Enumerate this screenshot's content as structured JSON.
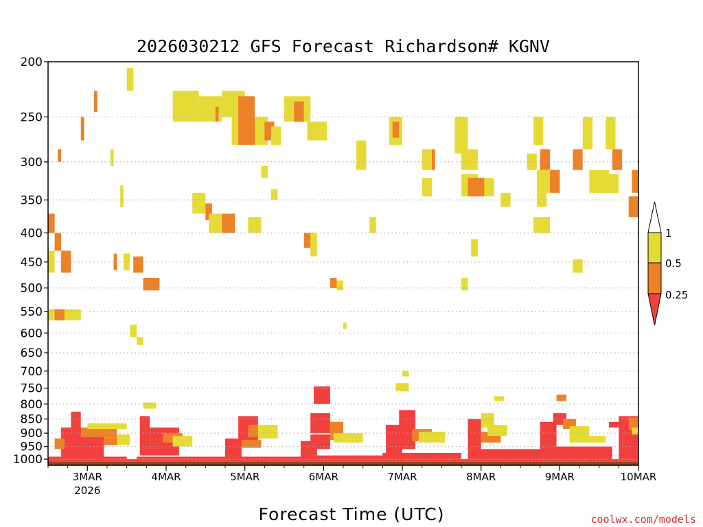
{
  "colors": {
    "red": "#f2403f",
    "orange": "#ec8128",
    "yellow": "#e6db36",
    "ground": "#8a4a1e",
    "grid": "#aaaaaa"
  },
  "chart_data": {
    "type": "heatmap",
    "title": "2026030212 GFS Forecast Richardson# KGNV",
    "xlabel": "Forecast Time (UTC)",
    "ylabel": "",
    "credit": "coolwx.com/models",
    "x_units": "hours since 2026-03-02 12Z",
    "xlim": [
      0,
      180
    ],
    "x_ticks": [
      {
        "h": 12,
        "label": "3MAR",
        "sub": "2026"
      },
      {
        "h": 36,
        "label": "4MAR",
        "sub": ""
      },
      {
        "h": 60,
        "label": "5MAR",
        "sub": ""
      },
      {
        "h": 84,
        "label": "6MAR",
        "sub": ""
      },
      {
        "h": 108,
        "label": "7MAR",
        "sub": ""
      },
      {
        "h": 132,
        "label": "8MAR",
        "sub": ""
      },
      {
        "h": 156,
        "label": "9MAR",
        "sub": ""
      },
      {
        "h": 180,
        "label": "10MAR",
        "sub": ""
      }
    ],
    "y_units": "hPa",
    "ylim": [
      1025,
      200
    ],
    "y_ticks": [
      200,
      250,
      300,
      350,
      400,
      450,
      500,
      550,
      600,
      650,
      700,
      750,
      800,
      850,
      900,
      950,
      1000
    ],
    "legend": {
      "labels": [
        "1",
        "0.5",
        "0.25"
      ],
      "classes": [
        {
          "name": "< 0.25",
          "color": "red"
        },
        {
          "name": "0.25 - 0.5",
          "color": "orange"
        },
        {
          "name": "0.5 - 1",
          "color": "yellow"
        },
        {
          "name": "> 1",
          "color": "white"
        }
      ]
    },
    "cells": [
      {
        "h0": 0.0,
        "h1": 180.0,
        "p0": 1010,
        "p1": 1025,
        "c": "ground"
      },
      {
        "h0": 0.0,
        "h1": 180.0,
        "p0": 1000,
        "p1": 1010,
        "c": "red"
      },
      {
        "h0": 7.0,
        "h1": 10.0,
        "p0": 825,
        "p1": 990,
        "c": "red"
      },
      {
        "h0": 4.0,
        "h1": 17.0,
        "p0": 880,
        "p1": 990,
        "c": "red"
      },
      {
        "h0": 2.0,
        "h1": 5.0,
        "p0": 920,
        "p1": 960,
        "c": "orange"
      },
      {
        "h0": 10.0,
        "h1": 21.0,
        "p0": 880,
        "p1": 915,
        "c": "orange"
      },
      {
        "h0": 12.0,
        "h1": 24.0,
        "p0": 865,
        "p1": 885,
        "c": "yellow"
      },
      {
        "h0": 17.0,
        "h1": 22.0,
        "p0": 915,
        "p1": 945,
        "c": "orange"
      },
      {
        "h0": 21.0,
        "h1": 25.0,
        "p0": 905,
        "p1": 945,
        "c": "yellow"
      },
      {
        "h0": 9.0,
        "h1": 16.0,
        "p0": 955,
        "p1": 985,
        "c": "red"
      },
      {
        "h0": 0.0,
        "h1": 24.0,
        "p0": 990,
        "p1": 1000,
        "c": "red"
      },
      {
        "h0": 28.0,
        "h1": 31.0,
        "p0": 840,
        "p1": 985,
        "c": "red"
      },
      {
        "h0": 31.0,
        "h1": 40.0,
        "p0": 880,
        "p1": 985,
        "c": "red"
      },
      {
        "h0": 35.0,
        "h1": 41.0,
        "p0": 900,
        "p1": 935,
        "c": "orange"
      },
      {
        "h0": 38.0,
        "h1": 44.0,
        "p0": 910,
        "p1": 950,
        "c": "yellow"
      },
      {
        "h0": 29.0,
        "h1": 33.0,
        "p0": 795,
        "p1": 815,
        "c": "yellow"
      },
      {
        "h0": 27.0,
        "h1": 50.0,
        "p0": 990,
        "p1": 1000,
        "c": "red"
      },
      {
        "h0": 54.0,
        "h1": 59.0,
        "p0": 920,
        "p1": 995,
        "c": "red"
      },
      {
        "h0": 58.0,
        "h1": 64.0,
        "p0": 840,
        "p1": 950,
        "c": "red"
      },
      {
        "h0": 61.0,
        "h1": 67.0,
        "p0": 870,
        "p1": 915,
        "c": "orange"
      },
      {
        "h0": 64.0,
        "h1": 70.0,
        "p0": 870,
        "p1": 920,
        "c": "yellow"
      },
      {
        "h0": 59.0,
        "h1": 65.0,
        "p0": 925,
        "p1": 955,
        "c": "orange"
      },
      {
        "h0": 50.0,
        "h1": 80.0,
        "p0": 990,
        "p1": 1000,
        "c": "red"
      },
      {
        "h0": 77.0,
        "h1": 82.0,
        "p0": 930,
        "p1": 995,
        "c": "red"
      },
      {
        "h0": 80.0,
        "h1": 86.0,
        "p0": 830,
        "p1": 900,
        "c": "red"
      },
      {
        "h0": 81.0,
        "h1": 86.0,
        "p0": 745,
        "p1": 800,
        "c": "red"
      },
      {
        "h0": 86.0,
        "h1": 90.0,
        "p0": 860,
        "p1": 925,
        "c": "orange"
      },
      {
        "h0": 87.0,
        "h1": 96.0,
        "p0": 900,
        "p1": 935,
        "c": "yellow"
      },
      {
        "h0": 80.0,
        "h1": 86.0,
        "p0": 905,
        "p1": 960,
        "c": "red"
      },
      {
        "h0": 78.0,
        "h1": 106.0,
        "p0": 985,
        "p1": 1000,
        "c": "red"
      },
      {
        "h0": 103.0,
        "h1": 108.0,
        "p0": 870,
        "p1": 990,
        "c": "red"
      },
      {
        "h0": 107.0,
        "h1": 112.0,
        "p0": 820,
        "p1": 960,
        "c": "red"
      },
      {
        "h0": 111.0,
        "h1": 117.0,
        "p0": 885,
        "p1": 930,
        "c": "orange"
      },
      {
        "h0": 113.0,
        "h1": 121.0,
        "p0": 895,
        "p1": 935,
        "c": "yellow"
      },
      {
        "h0": 106.0,
        "h1": 110.0,
        "p0": 735,
        "p1": 760,
        "c": "yellow"
      },
      {
        "h0": 108.0,
        "h1": 110.0,
        "p0": 700,
        "p1": 715,
        "c": "yellow"
      },
      {
        "h0": 102.0,
        "h1": 126.0,
        "p0": 975,
        "p1": 1000,
        "c": "red"
      },
      {
        "h0": 128.0,
        "h1": 132.0,
        "p0": 850,
        "p1": 1000,
        "c": "red"
      },
      {
        "h0": 132.0,
        "h1": 136.0,
        "p0": 830,
        "p1": 880,
        "c": "yellow"
      },
      {
        "h0": 132.0,
        "h1": 138.0,
        "p0": 895,
        "p1": 935,
        "c": "orange"
      },
      {
        "h0": 134.0,
        "h1": 140.0,
        "p0": 870,
        "p1": 910,
        "c": "yellow"
      },
      {
        "h0": 136.0,
        "h1": 139.0,
        "p0": 775,
        "p1": 790,
        "c": "yellow"
      },
      {
        "h0": 130.0,
        "h1": 150.0,
        "p0": 960,
        "p1": 1000,
        "c": "red"
      },
      {
        "h0": 150.0,
        "h1": 155.0,
        "p0": 860,
        "p1": 1000,
        "c": "red"
      },
      {
        "h0": 154.0,
        "h1": 158.0,
        "p0": 830,
        "p1": 870,
        "c": "red"
      },
      {
        "h0": 157.0,
        "h1": 161.0,
        "p0": 850,
        "p1": 885,
        "c": "orange"
      },
      {
        "h0": 159.0,
        "h1": 165.0,
        "p0": 875,
        "p1": 935,
        "c": "yellow"
      },
      {
        "h0": 155.0,
        "h1": 158.0,
        "p0": 770,
        "p1": 790,
        "c": "orange"
      },
      {
        "h0": 165.0,
        "h1": 170.0,
        "p0": 910,
        "p1": 935,
        "c": "yellow"
      },
      {
        "h0": 150.0,
        "h1": 172.0,
        "p0": 950,
        "p1": 1000,
        "c": "red"
      },
      {
        "h0": 171.0,
        "h1": 175.0,
        "p0": 860,
        "p1": 880,
        "c": "red"
      },
      {
        "h0": 174.0,
        "h1": 180.0,
        "p0": 840,
        "p1": 1000,
        "c": "red"
      },
      {
        "h0": 177.0,
        "h1": 180.0,
        "p0": 845,
        "p1": 890,
        "c": "orange"
      },
      {
        "h0": 178.0,
        "h1": 180.0,
        "p0": 880,
        "p1": 905,
        "c": "yellow"
      },
      {
        "h0": 0.0,
        "h1": 2.0,
        "p0": 370,
        "p1": 400,
        "c": "orange"
      },
      {
        "h0": 0.0,
        "h1": 2.0,
        "p0": 430,
        "p1": 470,
        "c": "yellow"
      },
      {
        "h0": 4.0,
        "h1": 7.0,
        "p0": 430,
        "p1": 470,
        "c": "orange"
      },
      {
        "h0": 2.0,
        "h1": 4.0,
        "p0": 400,
        "p1": 430,
        "c": "orange"
      },
      {
        "h0": 0.0,
        "h1": 10.0,
        "p0": 545,
        "p1": 570,
        "c": "yellow"
      },
      {
        "h0": 2.0,
        "h1": 5.0,
        "p0": 545,
        "p1": 570,
        "c": "orange"
      },
      {
        "h0": 3.0,
        "h1": 4.0,
        "p0": 285,
        "p1": 300,
        "c": "orange"
      },
      {
        "h0": 10.0,
        "h1": 11.0,
        "p0": 250,
        "p1": 275,
        "c": "orange"
      },
      {
        "h0": 14.0,
        "h1": 15.0,
        "p0": 225,
        "p1": 245,
        "c": "orange"
      },
      {
        "h0": 19.0,
        "h1": 20.0,
        "p0": 285,
        "p1": 305,
        "c": "yellow"
      },
      {
        "h0": 22.0,
        "h1": 23.0,
        "p0": 330,
        "p1": 360,
        "c": "yellow"
      },
      {
        "h0": 24.0,
        "h1": 26.0,
        "p0": 205,
        "p1": 225,
        "c": "yellow"
      },
      {
        "h0": 20.0,
        "h1": 21.0,
        "p0": 435,
        "p1": 465,
        "c": "orange"
      },
      {
        "h0": 23.0,
        "h1": 25.0,
        "p0": 435,
        "p1": 465,
        "c": "yellow"
      },
      {
        "h0": 26.0,
        "h1": 29.0,
        "p0": 440,
        "p1": 470,
        "c": "orange"
      },
      {
        "h0": 29.0,
        "h1": 31.0,
        "p0": 480,
        "p1": 505,
        "c": "orange"
      },
      {
        "h0": 25.0,
        "h1": 27.0,
        "p0": 580,
        "p1": 610,
        "c": "yellow"
      },
      {
        "h0": 27.0,
        "h1": 29.0,
        "p0": 610,
        "p1": 630,
        "c": "yellow"
      },
      {
        "h0": 31.0,
        "h1": 34.0,
        "p0": 480,
        "p1": 505,
        "c": "orange"
      },
      {
        "h0": 38.0,
        "h1": 46.0,
        "p0": 225,
        "p1": 255,
        "c": "yellow"
      },
      {
        "h0": 46.0,
        "h1": 53.0,
        "p0": 230,
        "p1": 255,
        "c": "yellow"
      },
      {
        "h0": 51.0,
        "h1": 52.0,
        "p0": 240,
        "p1": 255,
        "c": "orange"
      },
      {
        "h0": 53.0,
        "h1": 60.0,
        "p0": 225,
        "p1": 250,
        "c": "yellow"
      },
      {
        "h0": 56.0,
        "h1": 60.0,
        "p0": 250,
        "p1": 280,
        "c": "yellow"
      },
      {
        "h0": 58.0,
        "h1": 63.0,
        "p0": 230,
        "p1": 280,
        "c": "orange"
      },
      {
        "h0": 63.0,
        "h1": 67.0,
        "p0": 250,
        "p1": 280,
        "c": "yellow"
      },
      {
        "h0": 66.0,
        "h1": 69.0,
        "p0": 255,
        "p1": 275,
        "c": "orange"
      },
      {
        "h0": 68.0,
        "h1": 71.0,
        "p0": 260,
        "p1": 280,
        "c": "yellow"
      },
      {
        "h0": 72.0,
        "h1": 80.0,
        "p0": 230,
        "p1": 255,
        "c": "yellow"
      },
      {
        "h0": 75.0,
        "h1": 78.0,
        "p0": 235,
        "p1": 255,
        "c": "orange"
      },
      {
        "h0": 79.0,
        "h1": 85.0,
        "p0": 255,
        "p1": 275,
        "c": "yellow"
      },
      {
        "h0": 44.0,
        "h1": 48.0,
        "p0": 340,
        "p1": 370,
        "c": "yellow"
      },
      {
        "h0": 48.0,
        "h1": 50.0,
        "p0": 355,
        "p1": 380,
        "c": "orange"
      },
      {
        "h0": 49.0,
        "h1": 53.0,
        "p0": 370,
        "p1": 400,
        "c": "yellow"
      },
      {
        "h0": 53.0,
        "h1": 57.0,
        "p0": 370,
        "p1": 400,
        "c": "orange"
      },
      {
        "h0": 61.0,
        "h1": 65.0,
        "p0": 375,
        "p1": 400,
        "c": "yellow"
      },
      {
        "h0": 68.0,
        "h1": 70.0,
        "p0": 335,
        "p1": 350,
        "c": "yellow"
      },
      {
        "h0": 65.0,
        "h1": 67.0,
        "p0": 305,
        "p1": 320,
        "c": "yellow"
      },
      {
        "h0": 78.0,
        "h1": 81.0,
        "p0": 400,
        "p1": 425,
        "c": "orange"
      },
      {
        "h0": 80.0,
        "h1": 82.0,
        "p0": 400,
        "p1": 440,
        "c": "yellow"
      },
      {
        "h0": 86.0,
        "h1": 88.0,
        "p0": 480,
        "p1": 500,
        "c": "orange"
      },
      {
        "h0": 88.0,
        "h1": 90.0,
        "p0": 485,
        "p1": 505,
        "c": "yellow"
      },
      {
        "h0": 90.0,
        "h1": 91.0,
        "p0": 575,
        "p1": 590,
        "c": "yellow"
      },
      {
        "h0": 94.0,
        "h1": 97.0,
        "p0": 275,
        "p1": 310,
        "c": "yellow"
      },
      {
        "h0": 98.0,
        "h1": 100.0,
        "p0": 375,
        "p1": 400,
        "c": "yellow"
      },
      {
        "h0": 104.0,
        "h1": 108.0,
        "p0": 250,
        "p1": 280,
        "c": "yellow"
      },
      {
        "h0": 105.0,
        "h1": 107.0,
        "p0": 255,
        "p1": 272,
        "c": "orange"
      },
      {
        "h0": 114.0,
        "h1": 117.0,
        "p0": 285,
        "p1": 310,
        "c": "yellow"
      },
      {
        "h0": 117.0,
        "h1": 118.0,
        "p0": 285,
        "p1": 310,
        "c": "orange"
      },
      {
        "h0": 114.0,
        "h1": 117.0,
        "p0": 320,
        "p1": 345,
        "c": "yellow"
      },
      {
        "h0": 124.0,
        "h1": 128.0,
        "p0": 250,
        "p1": 290,
        "c": "yellow"
      },
      {
        "h0": 126.0,
        "h1": 131.0,
        "p0": 285,
        "p1": 310,
        "c": "yellow"
      },
      {
        "h0": 126.0,
        "h1": 131.0,
        "p0": 315,
        "p1": 345,
        "c": "yellow"
      },
      {
        "h0": 128.0,
        "h1": 133.0,
        "p0": 320,
        "p1": 345,
        "c": "orange"
      },
      {
        "h0": 133.0,
        "h1": 136.0,
        "p0": 320,
        "p1": 345,
        "c": "yellow"
      },
      {
        "h0": 129.0,
        "h1": 131.0,
        "p0": 410,
        "p1": 440,
        "c": "yellow"
      },
      {
        "h0": 126.0,
        "h1": 128.0,
        "p0": 480,
        "p1": 505,
        "c": "yellow"
      },
      {
        "h0": 138.0,
        "h1": 141.0,
        "p0": 340,
        "p1": 360,
        "c": "yellow"
      },
      {
        "h0": 148.0,
        "h1": 151.0,
        "p0": 250,
        "p1": 280,
        "c": "yellow"
      },
      {
        "h0": 146.0,
        "h1": 149.0,
        "p0": 290,
        "p1": 310,
        "c": "yellow"
      },
      {
        "h0": 150.0,
        "h1": 153.0,
        "p0": 285,
        "p1": 310,
        "c": "orange"
      },
      {
        "h0": 149.0,
        "h1": 156.0,
        "p0": 310,
        "p1": 340,
        "c": "yellow"
      },
      {
        "h0": 153.0,
        "h1": 156.0,
        "p0": 310,
        "p1": 340,
        "c": "orange"
      },
      {
        "h0": 149.0,
        "h1": 152.0,
        "p0": 340,
        "p1": 360,
        "c": "yellow"
      },
      {
        "h0": 148.0,
        "h1": 153.0,
        "p0": 375,
        "p1": 400,
        "c": "yellow"
      },
      {
        "h0": 160.0,
        "h1": 163.0,
        "p0": 285,
        "p1": 310,
        "c": "orange"
      },
      {
        "h0": 163.0,
        "h1": 166.0,
        "p0": 250,
        "p1": 285,
        "c": "yellow"
      },
      {
        "h0": 170.0,
        "h1": 173.0,
        "p0": 250,
        "p1": 285,
        "c": "yellow"
      },
      {
        "h0": 172.0,
        "h1": 175.0,
        "p0": 285,
        "p1": 310,
        "c": "orange"
      },
      {
        "h0": 165.0,
        "h1": 171.0,
        "p0": 310,
        "p1": 340,
        "c": "yellow"
      },
      {
        "h0": 171.0,
        "h1": 174.0,
        "p0": 315,
        "p1": 340,
        "c": "yellow"
      },
      {
        "h0": 160.0,
        "h1": 163.0,
        "p0": 445,
        "p1": 470,
        "c": "yellow"
      },
      {
        "h0": 177.0,
        "h1": 180.0,
        "p0": 345,
        "p1": 375,
        "c": "orange"
      },
      {
        "h0": 178.0,
        "h1": 180.0,
        "p0": 310,
        "p1": 340,
        "c": "orange"
      }
    ]
  }
}
